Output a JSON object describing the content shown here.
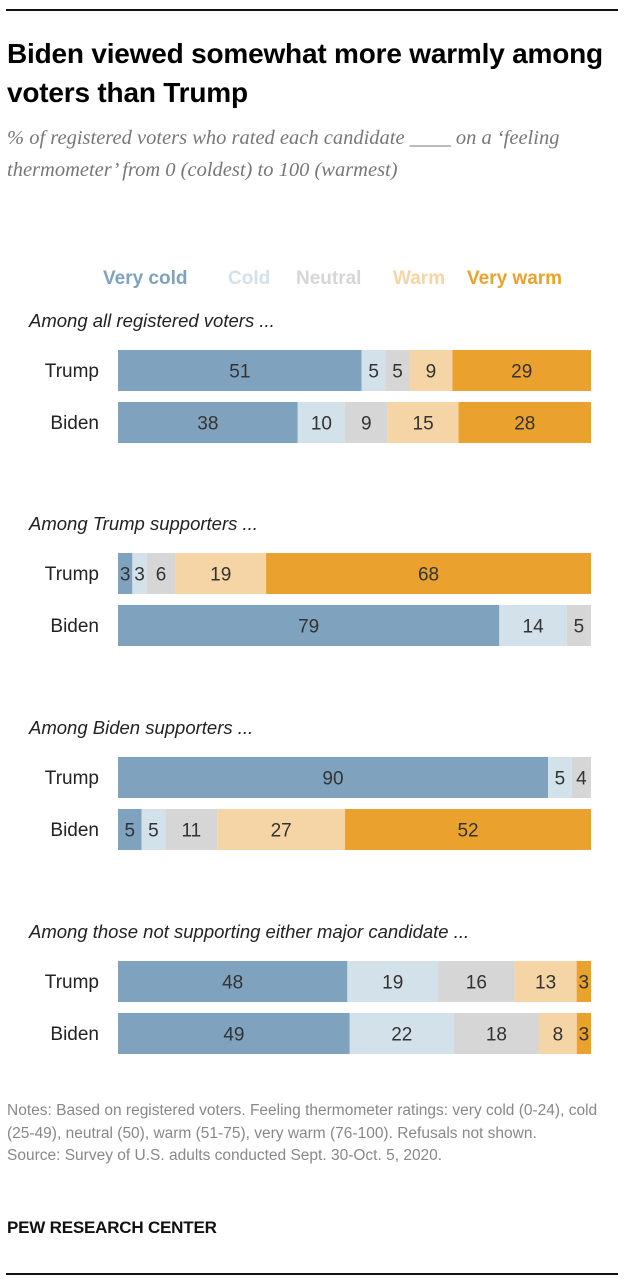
{
  "title": "Biden viewed somewhat more warmly among voters than Trump",
  "subtitle": "% of registered voters who rated each candidate ____ on a ‘feeling thermometer’ from 0 (coldest) to 100 (warmest)",
  "notes": "Notes: Based on registered voters. Feeling thermometer ratings: very cold (0-24), cold (25-49), neutral (50), warm (51-75), very warm (76-100). Refusals not shown.",
  "source": "Source: Survey of U.S. adults conducted Sept. 30-Oct. 5, 2020.",
  "brand": "PEW RESEARCH CENTER",
  "chart_data": {
    "type": "bar",
    "orientation": "horizontal-stacked",
    "legend_position": "top",
    "series": [
      {
        "name": "Very cold",
        "color": "#7fa3bf",
        "label_color": "#7fa3bf"
      },
      {
        "name": "Cold",
        "color": "#d3e1ea",
        "label_color": "#d3e1ea"
      },
      {
        "name": "Neutral",
        "color": "#d6d6d6",
        "label_color": "#d6d6d6"
      },
      {
        "name": "Warm",
        "color": "#f5d5a5",
        "label_color": "#f5d5a5"
      },
      {
        "name": "Very warm",
        "color": "#eba12e",
        "label_color": "#eba12e"
      }
    ],
    "groups": [
      {
        "label": "Among all registered voters ...",
        "rows": [
          {
            "name": "Trump",
            "values": [
              51,
              5,
              5,
              9,
              29
            ]
          },
          {
            "name": "Biden",
            "values": [
              38,
              10,
              9,
              15,
              28
            ]
          }
        ]
      },
      {
        "label": "Among Trump supporters ...",
        "rows": [
          {
            "name": "Trump",
            "values": [
              3,
              3,
              6,
              19,
              68
            ]
          },
          {
            "name": "Biden",
            "values": [
              79,
              14,
              5,
              null,
              null
            ]
          }
        ]
      },
      {
        "label": "Among Biden supporters ...",
        "rows": [
          {
            "name": "Trump",
            "values": [
              90,
              5,
              4,
              null,
              null
            ]
          },
          {
            "name": "Biden",
            "values": [
              5,
              5,
              11,
              27,
              52
            ]
          }
        ]
      },
      {
        "label": "Among those not supporting either major candidate ...",
        "rows": [
          {
            "name": "Trump",
            "values": [
              48,
              19,
              16,
              13,
              3
            ]
          },
          {
            "name": "Biden",
            "values": [
              49,
              22,
              18,
              8,
              3
            ]
          }
        ]
      }
    ]
  }
}
